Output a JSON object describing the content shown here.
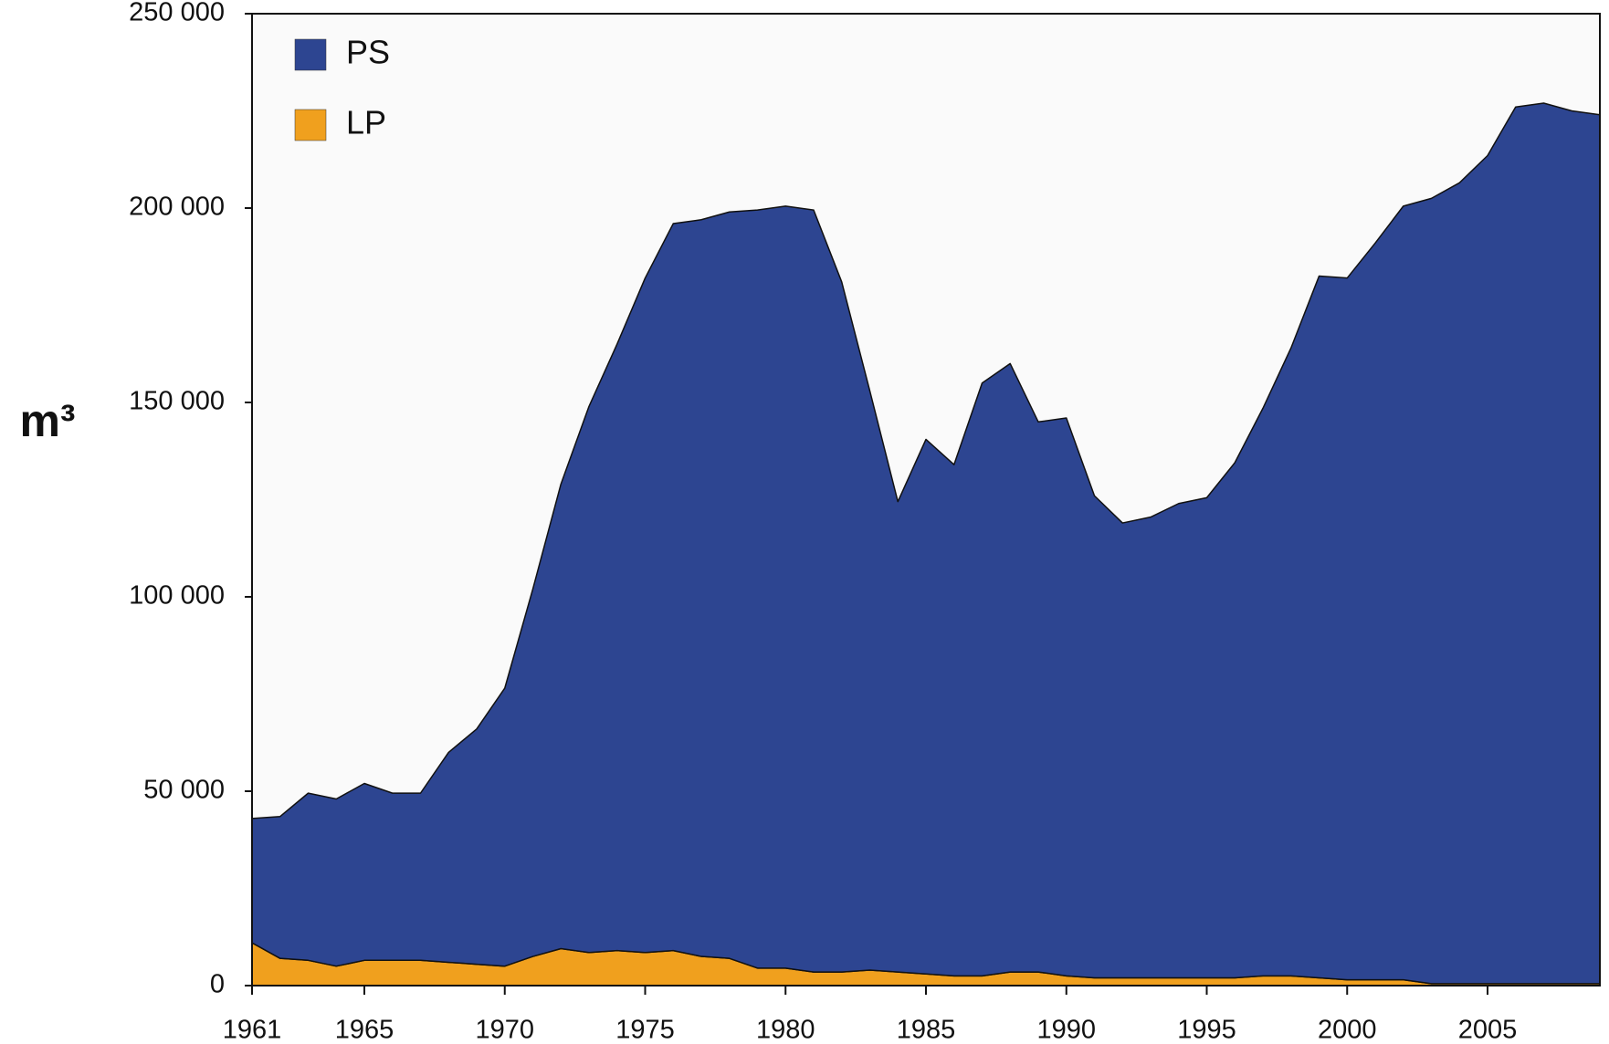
{
  "chart_data": {
    "type": "stacked_area",
    "y_label": "m³",
    "x": [
      1961,
      1962,
      1963,
      1964,
      1965,
      1966,
      1967,
      1968,
      1969,
      1970,
      1971,
      1972,
      1973,
      1974,
      1975,
      1976,
      1977,
      1978,
      1979,
      1980,
      1981,
      1982,
      1983,
      1984,
      1985,
      1986,
      1987,
      1988,
      1989,
      1990,
      1991,
      1992,
      1993,
      1994,
      1995,
      1996,
      1997,
      1998,
      1999,
      2000,
      2001,
      2002,
      2003,
      2004,
      2005,
      2006,
      2007,
      2008,
      2009
    ],
    "series": [
      {
        "name": "LP",
        "color": "#f0a01e",
        "values": [
          11000,
          7000,
          6500,
          5000,
          6500,
          6500,
          6500,
          6000,
          5500,
          5000,
          7500,
          9500,
          8500,
          9000,
          8500,
          9000,
          7500,
          7000,
          4500,
          4500,
          3500,
          3500,
          4000,
          3500,
          3000,
          2500,
          2500,
          3500,
          3500,
          2500,
          2000,
          2000,
          2000,
          2000,
          2000,
          2000,
          2500,
          2500,
          2000,
          1500,
          1500,
          1500,
          500,
          500,
          500,
          500,
          500,
          500,
          500
        ]
      },
      {
        "name": "PS",
        "color": "#2d4591",
        "values": [
          32000,
          36500,
          43000,
          43000,
          45500,
          43000,
          43000,
          54000,
          60500,
          71500,
          94500,
          119500,
          140500,
          156000,
          173500,
          187000,
          189500,
          192000,
          195000,
          196000,
          196000,
          177500,
          149000,
          121000,
          137500,
          131500,
          152500,
          156500,
          141500,
          143500,
          124000,
          117000,
          118500,
          122000,
          123500,
          132500,
          146000,
          161500,
          180500,
          180500,
          189500,
          199000,
          202000,
          206000,
          213000,
          225500,
          226500,
          224500,
          223500
        ]
      }
    ],
    "legend_order": [
      "PS",
      "LP"
    ],
    "xlim": [
      1961,
      2009
    ],
    "xticks": [
      1961,
      1965,
      1970,
      1975,
      1980,
      1985,
      1990,
      1995,
      2000,
      2005
    ],
    "ylim": [
      0,
      250000
    ],
    "yticks": [
      0,
      {
        "value": 50000,
        "label": "50 000"
      },
      {
        "value": 100000,
        "label": "100 000"
      },
      {
        "value": 150000,
        "label": "150 000"
      },
      {
        "value": 200000,
        "label": "200 000"
      },
      {
        "value": 250000,
        "label": "250 000"
      }
    ],
    "legend": "top-left",
    "grid": false
  }
}
